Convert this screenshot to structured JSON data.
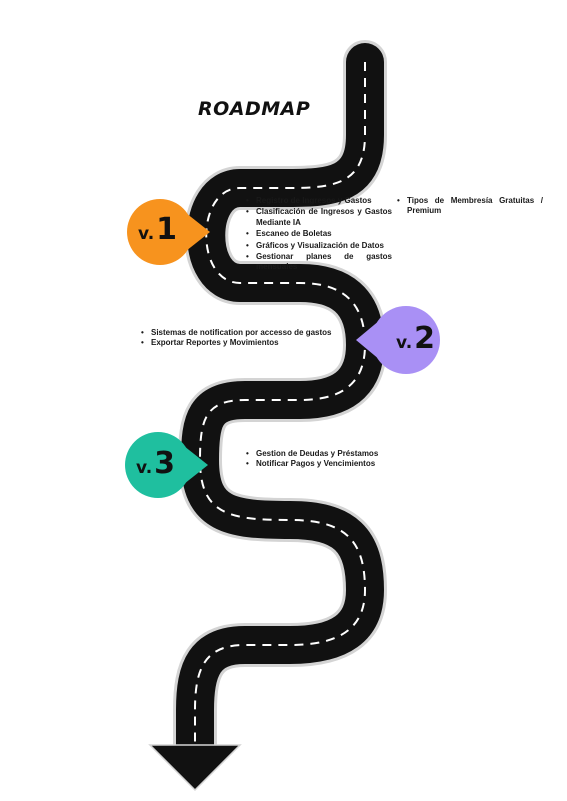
{
  "title": "ROADMAP",
  "milestones": [
    {
      "prefix": "v.",
      "number": "1",
      "color": "#f7931e"
    },
    {
      "prefix": "v.",
      "number": "2",
      "color": "#a990f5"
    },
    {
      "prefix": "v.",
      "number": "3",
      "color": "#1fbf9f"
    }
  ],
  "v1_items": [
    "Registro de Ingresos y Gastos",
    "Clasificación de Ingresos y Gastos Mediante IA",
    "Escaneo de Boletas",
    "Gráficos y Visualización de Datos",
    "Gestionar planes de gastos mensuales"
  ],
  "v1_extra_items": [
    "Tipos de Membresía Gratuitas / Premium"
  ],
  "v2_items": [
    "Sistemas de notification por accesso de gastos",
    "Exportar Reportes y Movimientos"
  ],
  "v3_items": [
    "Gestion de Deudas y Préstamos",
    "Notificar Pagos y Vencimientos"
  ]
}
